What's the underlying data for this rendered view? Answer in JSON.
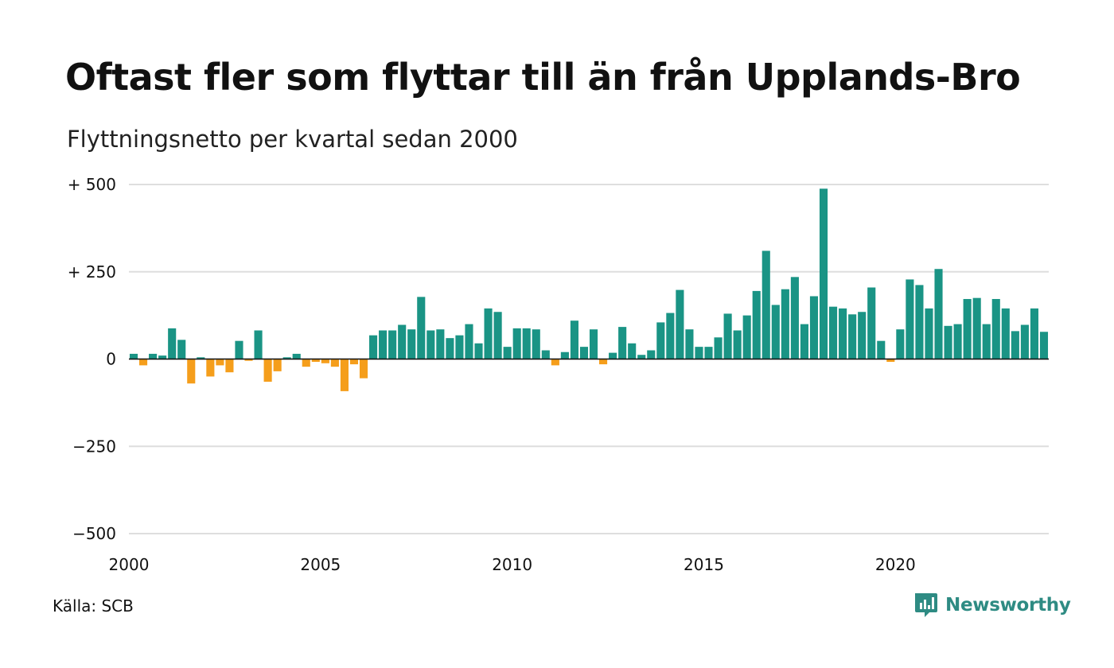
{
  "title": "Oftast fler som flyttar till än från Upplands-Bro",
  "subtitle": "Flyttningsnetto per kvartal sedan 2000",
  "source": "Källa: SCB",
  "brand": "Newsworthy",
  "colors": {
    "positive": "#1a9485",
    "negative": "#f59e1b",
    "grid": "#dedede",
    "brand": "#2e8b83"
  },
  "chart_data": {
    "type": "bar",
    "title": "Oftast fler som flyttar till än från Upplands-Bro",
    "subtitle": "Flyttningsnetto per kvartal sedan 2000",
    "xlabel": "",
    "ylabel": "",
    "ylim": [
      -500,
      500
    ],
    "y_ticks": [
      {
        "value": 500,
        "label": "+ 500"
      },
      {
        "value": 250,
        "label": "+ 250"
      },
      {
        "value": 0,
        "label": "0"
      },
      {
        "value": -250,
        "label": "−250"
      },
      {
        "value": -500,
        "label": "−500"
      }
    ],
    "x_ticks": [
      "2000",
      "2005",
      "2010",
      "2015",
      "2020"
    ],
    "grid": true,
    "start": "2000 Q1",
    "frequency": "quarterly",
    "values": [
      15,
      -18,
      15,
      10,
      88,
      55,
      -70,
      5,
      -50,
      -18,
      -38,
      52,
      -5,
      82,
      -65,
      -35,
      5,
      15,
      -22,
      -8,
      -12,
      -22,
      -92,
      -15,
      -55,
      68,
      82,
      82,
      98,
      85,
      178,
      82,
      85,
      60,
      68,
      100,
      45,
      145,
      135,
      35,
      88,
      88,
      85,
      25,
      -18,
      20,
      110,
      35,
      85,
      -15,
      18,
      92,
      45,
      12,
      25,
      105,
      132,
      198,
      85,
      35,
      35,
      62,
      130,
      82,
      125,
      195,
      310,
      155,
      200,
      235,
      100,
      180,
      488,
      150,
      145,
      128,
      135,
      205,
      52,
      -8,
      85,
      228,
      212,
      145,
      258,
      95,
      100,
      172,
      175,
      100,
      172,
      145,
      80,
      98,
      145,
      78
    ]
  }
}
